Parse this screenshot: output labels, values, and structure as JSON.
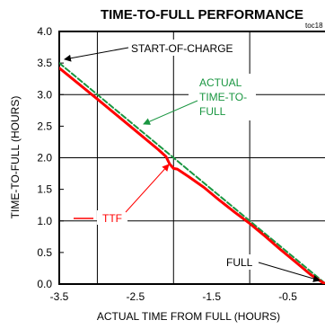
{
  "chart_data": {
    "type": "line",
    "title": "TIME-TO-FULL PERFORMANCE",
    "figure_tag": "toc18",
    "xlabel": "ACTUAL TIME FROM FULL (HOURS)",
    "ylabel": "TIME-TO-FULL (HOURS)",
    "xlim": [
      -3.5,
      0.0
    ],
    "ylim": [
      0.0,
      4.0
    ],
    "x_ticks": [
      "-3.5",
      "-2.5",
      "-1.5",
      "-0.5"
    ],
    "y_ticks": [
      "0.0",
      "0.5",
      "1.0",
      "1.5",
      "2.0",
      "2.5",
      "3.0",
      "3.5",
      "4.0"
    ],
    "x_tick_values": [
      -3.5,
      -2.5,
      -1.5,
      -0.5
    ],
    "y_tick_values": [
      0.0,
      0.5,
      1.0,
      1.5,
      2.0,
      2.5,
      3.0,
      3.5,
      4.0
    ],
    "grid": true,
    "series": [
      {
        "name": "ACTUAL TIME-TO-FULL",
        "color": "#1a9641",
        "style": "dashed",
        "x": [
          -3.5,
          0.0
        ],
        "y": [
          3.5,
          0.0
        ]
      },
      {
        "name": "TTF",
        "color": "#ff0000",
        "style": "solid",
        "x": [
          -3.5,
          -3.0,
          -2.5,
          -2.2,
          -2.1,
          -2.05,
          -2.0,
          -1.95,
          -1.8,
          -1.6,
          -1.4,
          -1.2,
          -1.0,
          -0.8,
          -0.6,
          -0.4,
          -0.2,
          -0.05,
          0.0
        ],
        "y": [
          3.42,
          2.93,
          2.43,
          2.13,
          2.02,
          1.9,
          1.83,
          1.82,
          1.7,
          1.53,
          1.33,
          1.14,
          0.96,
          0.76,
          0.55,
          0.35,
          0.15,
          0.03,
          0.0
        ]
      }
    ],
    "annotations": {
      "start_label": "START-OF-CHARGE",
      "actual_label": [
        "ACTUAL",
        "TIME-TO-",
        "FULL"
      ],
      "ttf_label": "TTF",
      "full_label": "FULL"
    }
  }
}
